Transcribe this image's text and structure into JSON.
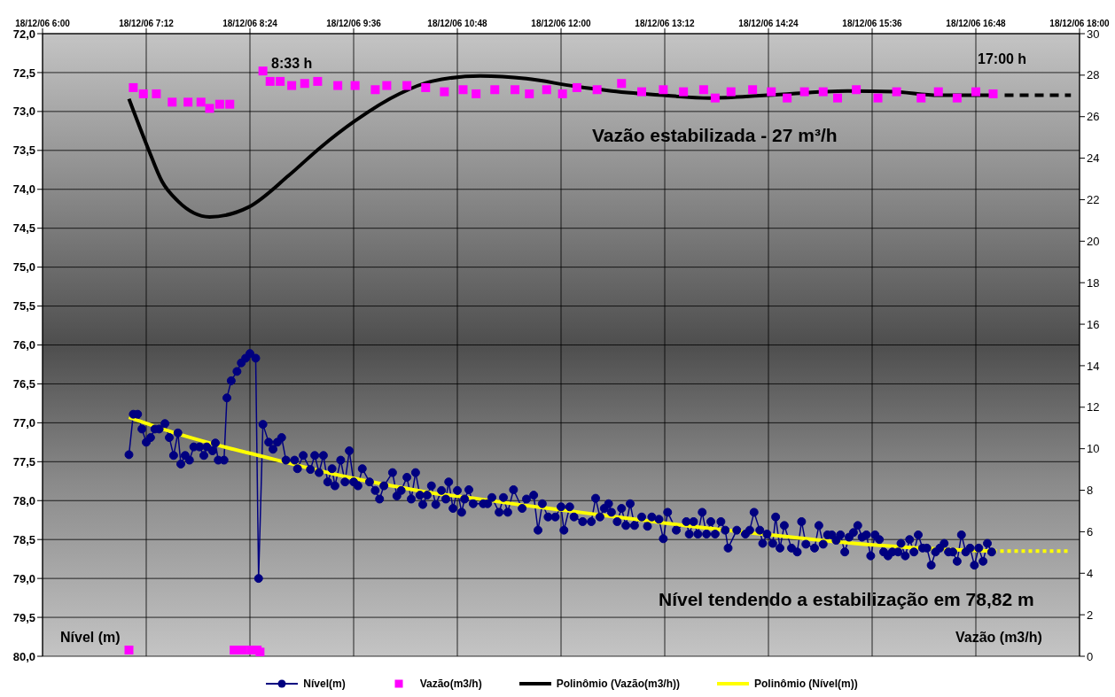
{
  "chart_data": {
    "type": "line",
    "xlim": [
      "--12-18T06:00",
      "--12-18T18:00"
    ],
    "xticks": [
      {
        "value": "--12-18T06:00",
        "label": "18/12/06 6:00"
      },
      {
        "value": "--12-18T07:12",
        "label": "18/12/06 7:12"
      },
      {
        "value": "--12-18T08:24",
        "label": "18/12/06 8:24"
      },
      {
        "value": "--12-18T09:36",
        "label": "18/12/06 9:36"
      },
      {
        "value": "--12-18T10:48",
        "label": "18/12/06 10:48"
      },
      {
        "value": "--12-18T12:00",
        "label": "18/12/06 12:00"
      },
      {
        "value": "--12-18T13:12",
        "label": "18/12/06 13:12"
      },
      {
        "value": "--12-18T14:24",
        "label": "18/12/06 14:24"
      },
      {
        "value": "--12-18T15:36",
        "label": "18/12/06 15:36"
      },
      {
        "value": "--12-18T16:48",
        "label": "18/12/06 16:48"
      },
      {
        "value": "--12-18T18:00",
        "label": "18/12/06 18:00"
      }
    ],
    "ylim": [
      80,
      72
    ],
    "yticks": [
      {
        "value": 72,
        "label": "72,0"
      },
      {
        "value": 72.5,
        "label": "72,5"
      },
      {
        "value": 73,
        "label": "73,0"
      },
      {
        "value": 73.5,
        "label": "73,5"
      },
      {
        "value": 74,
        "label": "74,0"
      },
      {
        "value": 74.5,
        "label": "74,5"
      },
      {
        "value": 75,
        "label": "75,0"
      },
      {
        "value": 75.5,
        "label": "75,5"
      },
      {
        "value": 76,
        "label": "76,0"
      },
      {
        "value": 76.5,
        "label": "76,5"
      },
      {
        "value": 77,
        "label": "77,0"
      },
      {
        "value": 77.5,
        "label": "77,5"
      },
      {
        "value": 78,
        "label": "78,0"
      },
      {
        "value": 78.5,
        "label": "78,5"
      },
      {
        "value": 79,
        "label": "79,0"
      },
      {
        "value": 79.5,
        "label": "79,5"
      },
      {
        "value": 80,
        "label": "80,0"
      }
    ],
    "y2lim": [
      0,
      30
    ],
    "y2ticks": [
      0,
      2,
      4,
      6,
      8,
      10,
      12,
      14,
      16,
      18,
      20,
      22,
      24,
      26,
      28,
      30
    ],
    "ylabel": "Nível (m)",
    "y2label": "Vazão (m3/h)",
    "grid": true,
    "legend": "bottom",
    "annotations": [
      "8:33 h",
      "17:00 h",
      "Vazão estabilizada - 27 m³/h",
      "Nível tendendo a estabilização em 78,82 m"
    ],
    "series": [
      {
        "name": "Nível(m)",
        "color": "#000080",
        "marker": "circle",
        "x": [
          "--12-18T07:00",
          "--12-18T07:03",
          "--12-18T07:06",
          "--12-18T07:09",
          "--12-18T07:12",
          "--12-18T07:15",
          "--12-18T07:18",
          "--12-18T07:21",
          "--12-18T07:25",
          "--12-18T07:28",
          "--12-18T07:31",
          "--12-18T07:34",
          "--12-18T07:36",
          "--12-18T07:39",
          "--12-18T07:42",
          "--12-18T07:45",
          "--12-18T07:49",
          "--12-18T07:52",
          "--12-18T07:54",
          "--12-18T07:58",
          "--12-18T08:00",
          "--12-18T08:02",
          "--12-18T08:06",
          "--12-18T08:08",
          "--12-18T08:11",
          "--12-18T08:15",
          "--12-18T08:18",
          "--12-18T08:21",
          "--12-18T08:24",
          "--12-18T08:28",
          "--12-18T08:30",
          "--12-18T08:33",
          "--12-18T08:37",
          "--12-18T08:40",
          "--12-18T08:43",
          "--12-18T08:46",
          "--12-18T08:49",
          "--12-18T08:55",
          "--12-18T08:57",
          "--12-18T09:01",
          "--12-18T09:06",
          "--12-18T09:09",
          "--12-18T09:12",
          "--12-18T09:15",
          "--12-18T09:18",
          "--12-18T09:21",
          "--12-18T09:23",
          "--12-18T09:27",
          "--12-18T09:30",
          "--12-18T09:33",
          "--12-18T09:36",
          "--12-18T09:39",
          "--12-18T09:42",
          "--12-18T09:47",
          "--12-18T09:51",
          "--12-18T09:54",
          "--12-18T09:57",
          "--12-18T10:03",
          "--12-18T10:06",
          "--12-18T10:09",
          "--12-18T10:13",
          "--12-18T10:16",
          "--12-18T10:19",
          "--12-18T10:22",
          "--12-18T10:24",
          "--12-18T10:27",
          "--12-18T10:30",
          "--12-18T10:33",
          "--12-18T10:37",
          "--12-18T10:40",
          "--12-18T10:42",
          "--12-18T10:45",
          "--12-18T10:48",
          "--12-18T10:51",
          "--12-18T10:53",
          "--12-18T10:56",
          "--12-18T10:59",
          "--12-18T11:06",
          "--12-18T11:09",
          "--12-18T11:12",
          "--12-18T11:17",
          "--12-18T11:20",
          "--12-18T11:23",
          "--12-18T11:27",
          "--12-18T11:33",
          "--12-18T11:36",
          "--12-18T11:41",
          "--12-18T11:44",
          "--12-18T11:47",
          "--12-18T11:51",
          "--12-18T11:56",
          "--12-18T12:00",
          "--12-18T12:02",
          "--12-18T12:06",
          "--12-18T12:09",
          "--12-18T12:15",
          "--12-18T12:21",
          "--12-18T12:24",
          "--12-18T12:27",
          "--12-18T12:30",
          "--12-18T12:33",
          "--12-18T12:35",
          "--12-18T12:39",
          "--12-18T12:42",
          "--12-18T12:45",
          "--12-18T12:48",
          "--12-18T12:51",
          "--12-18T12:56",
          "--12-18T13:00",
          "--12-18T13:03",
          "--12-18T13:08",
          "--12-18T13:11",
          "--12-18T13:14",
          "--12-18T13:20",
          "--12-18T13:27",
          "--12-18T13:29",
          "--12-18T13:32",
          "--12-18T13:35",
          "--12-18T13:38",
          "--12-18T13:41",
          "--12-18T13:44",
          "--12-18T13:47",
          "--12-18T13:51",
          "--12-18T13:54",
          "--12-18T13:56",
          "--12-18T14:02",
          "--12-18T14:08",
          "--12-18T14:11",
          "--12-18T14:14",
          "--12-18T14:18",
          "--12-18T14:20",
          "--12-18T14:23",
          "--12-18T14:27",
          "--12-18T14:29",
          "--12-18T14:32",
          "--12-18T14:35",
          "--12-18T14:40",
          "--12-18T14:44",
          "--12-18T14:47",
          "--12-18T14:50",
          "--12-18T14:56",
          "--12-18T14:59",
          "--12-18T15:02",
          "--12-18T15:05",
          "--12-18T15:08",
          "--12-18T15:11",
          "--12-18T15:14",
          "--12-18T15:17",
          "--12-18T15:20",
          "--12-18T15:23",
          "--12-18T15:26",
          "--12-18T15:29",
          "--12-18T15:32",
          "--12-18T15:35",
          "--12-18T15:38",
          "--12-18T15:41",
          "--12-18T15:44",
          "--12-18T15:47",
          "--12-18T15:50",
          "--12-18T15:54",
          "--12-18T15:56",
          "--12-18T15:59",
          "--12-18T16:02",
          "--12-18T16:05",
          "--12-18T16:08",
          "--12-18T16:11",
          "--12-18T16:14",
          "--12-18T16:17",
          "--12-18T16:20",
          "--12-18T16:23",
          "--12-18T16:26",
          "--12-18T16:29",
          "--12-18T16:32",
          "--12-18T16:35",
          "--12-18T16:38",
          "--12-18T16:41",
          "--12-18T16:44",
          "--12-18T16:47",
          "--12-18T16:50",
          "--12-18T16:53",
          "--12-18T16:56",
          "--12-18T16:59"
        ],
        "values": [
          77.41,
          76.89,
          76.89,
          77.08,
          77.25,
          77.19,
          77.08,
          77.08,
          77.01,
          77.19,
          77.42,
          77.13,
          77.53,
          77.42,
          77.48,
          77.31,
          77.31,
          77.42,
          77.31,
          77.36,
          77.26,
          77.48,
          77.48,
          76.68,
          76.46,
          76.34,
          76.23,
          76.17,
          76.11,
          76.17,
          79.0,
          77.02,
          77.25,
          77.34,
          77.25,
          77.19,
          77.48,
          77.48,
          77.59,
          77.42,
          77.6,
          77.42,
          77.64,
          77.42,
          77.76,
          77.59,
          77.81,
          77.48,
          77.76,
          77.36,
          77.76,
          77.81,
          77.59,
          77.76,
          77.87,
          77.98,
          77.81,
          77.64,
          77.94,
          77.87,
          77.7,
          77.98,
          77.64,
          77.93,
          78.05,
          77.93,
          77.81,
          78.05,
          77.87,
          77.98,
          77.76,
          78.1,
          77.87,
          78.15,
          77.98,
          77.86,
          78.04,
          78.04,
          78.04,
          77.96,
          78.15,
          77.96,
          78.15,
          77.86,
          78.1,
          77.98,
          77.93,
          78.38,
          78.04,
          78.21,
          78.21,
          78.08,
          78.38,
          78.08,
          78.21,
          78.27,
          78.27,
          77.97,
          78.21,
          78.1,
          78.04,
          78.15,
          78.27,
          78.1,
          78.32,
          78.04,
          78.32,
          78.21,
          78.33,
          78.21,
          78.24,
          78.49,
          78.15,
          78.38,
          78.27,
          78.43,
          78.27,
          78.43,
          78.15,
          78.43,
          78.27,
          78.43,
          78.27,
          78.38,
          78.61,
          78.38,
          78.43,
          78.38,
          78.15,
          78.38,
          78.55,
          78.43,
          78.55,
          78.21,
          78.61,
          78.32,
          78.61,
          78.66,
          78.27,
          78.56,
          78.61,
          78.32,
          78.56,
          78.44,
          78.44,
          78.51,
          78.44,
          78.66,
          78.47,
          78.41,
          78.32,
          78.47,
          78.44,
          78.71,
          78.44,
          78.5,
          78.66,
          78.71,
          78.66,
          78.66,
          78.55,
          78.71,
          78.5,
          78.66,
          78.44,
          78.61,
          78.61,
          78.83,
          78.66,
          78.61,
          78.55,
          78.66,
          78.66,
          78.78,
          78.44,
          78.66,
          78.61,
          78.83,
          78.61,
          78.78,
          78.55,
          78.66
        ]
      },
      {
        "name": "Vazão(m3/h)",
        "type": "scatter",
        "axis": "y2",
        "color": "#ff00ff",
        "marker": "square",
        "x": [
          "--12-18T07:00",
          "--12-18T07:03",
          "--12-18T07:10",
          "--12-18T07:19",
          "--12-18T07:30",
          "--12-18T07:41",
          "--12-18T07:50",
          "--12-18T07:56",
          "--12-18T08:03",
          "--12-18T08:10",
          "--12-18T08:13",
          "--12-18T08:19",
          "--12-18T08:25",
          "--12-18T08:29",
          "--12-18T08:31",
          "--12-18T08:33",
          "--12-18T08:38",
          "--12-18T08:45",
          "--12-18T08:53",
          "--12-18T09:02",
          "--12-18T09:11",
          "--12-18T09:25",
          "--12-18T09:37",
          "--12-18T09:51",
          "--12-18T09:59",
          "--12-18T10:13",
          "--12-18T10:26",
          "--12-18T10:39",
          "--12-18T10:52",
          "--12-18T11:01",
          "--12-18T11:14",
          "--12-18T11:28",
          "--12-18T11:38",
          "--12-18T11:50",
          "--12-18T12:01",
          "--12-18T12:11",
          "--12-18T12:25",
          "--12-18T12:42",
          "--12-18T12:56",
          "--12-18T13:11",
          "--12-18T13:25",
          "--12-18T13:39",
          "--12-18T13:47",
          "--12-18T13:58",
          "--12-18T14:13",
          "--12-18T14:26",
          "--12-18T14:37",
          "--12-18T14:49",
          "--12-18T15:02",
          "--12-18T15:12",
          "--12-18T15:25",
          "--12-18T15:40",
          "--12-18T15:53",
          "--12-18T16:10",
          "--12-18T16:22",
          "--12-18T16:35",
          "--12-18T16:48",
          "--12-18T17:00"
        ],
        "values": [
          0.3,
          27.4,
          27.1,
          27.1,
          26.7,
          26.7,
          26.7,
          26.4,
          26.6,
          26.6,
          0.3,
          0.3,
          0.3,
          0.3,
          0.2,
          28.2,
          27.7,
          27.7,
          27.5,
          27.6,
          27.7,
          27.5,
          27.5,
          27.3,
          27.5,
          27.5,
          27.4,
          27.2,
          27.3,
          27.1,
          27.3,
          27.3,
          27.1,
          27.3,
          27.1,
          27.4,
          27.3,
          27.6,
          27.2,
          27.3,
          27.2,
          27.3,
          26.9,
          27.2,
          27.3,
          27.2,
          26.9,
          27.2,
          27.2,
          26.9,
          27.3,
          26.9,
          27.2,
          26.9,
          27.2,
          26.9,
          27.2,
          27.1
        ]
      },
      {
        "name": "Polinômio (Vazão(m3/h))",
        "axis": "y2",
        "color": "#000000",
        "marker": "none",
        "x": [
          "--12-18T07:00",
          "--12-18T07:13",
          "--12-18T07:23",
          "--12-18T07:34",
          "--12-18T07:56",
          "--12-18T08:23",
          "--12-18T08:51",
          "--12-18T09:13",
          "--12-18T09:37",
          "--12-18T10:08",
          "--12-18T10:30",
          "--12-18T11:04",
          "--12-18T11:36",
          "--12-18T12:09",
          "--12-18T12:35",
          "--12-18T13:11",
          "--12-18T13:43",
          "--12-18T14:23",
          "--12-18T15:19",
          "--12-18T15:51",
          "--12-18T16:22",
          "--12-18T17:00"
        ],
        "values": [
          26.86,
          24.52,
          22.87,
          21.93,
          21.17,
          21.64,
          23.17,
          24.52,
          25.8,
          27.11,
          27.7,
          27.96,
          27.83,
          27.47,
          27.24,
          27.03,
          26.9,
          27.03,
          27.24,
          27.2,
          27.03,
          27.03
        ]
      },
      {
        "axis": "y2",
        "color": "#000000",
        "marker": "none",
        "line_style": "dashed",
        "x": [
          "--12-18T17:08",
          "--12-18T17:54"
        ],
        "values": [
          27.03,
          27.03
        ]
      },
      {
        "name": "Polinômio (Nível(m))",
        "color": "#ffff00",
        "marker": "none",
        "x": [
          "--12-18T07:00",
          "--12-18T07:30",
          "--12-18T08:00",
          "--12-18T08:30",
          "--12-18T09:00",
          "--12-18T09:30",
          "--12-18T10:00",
          "--12-18T10:30",
          "--12-18T11:00",
          "--12-18T11:30",
          "--12-18T12:00",
          "--12-18T12:30",
          "--12-18T13:00",
          "--12-18T13:30",
          "--12-18T14:00",
          "--12-18T14:30",
          "--12-18T15:00",
          "--12-18T15:30",
          "--12-18T16:00",
          "--12-18T16:30",
          "--12-18T17:00"
        ],
        "values": [
          76.93,
          77.12,
          77.28,
          77.42,
          77.56,
          77.69,
          77.8,
          77.9,
          77.97,
          78.05,
          78.12,
          78.19,
          78.26,
          78.33,
          78.39,
          78.45,
          78.51,
          78.56,
          78.6,
          78.63,
          78.65
        ]
      },
      {
        "color": "#ffff00",
        "marker": "none",
        "line_style": "dotted",
        "x": [
          "--12-18T17:00",
          "--12-18T17:52"
        ],
        "values": [
          78.65,
          78.65
        ]
      }
    ]
  }
}
